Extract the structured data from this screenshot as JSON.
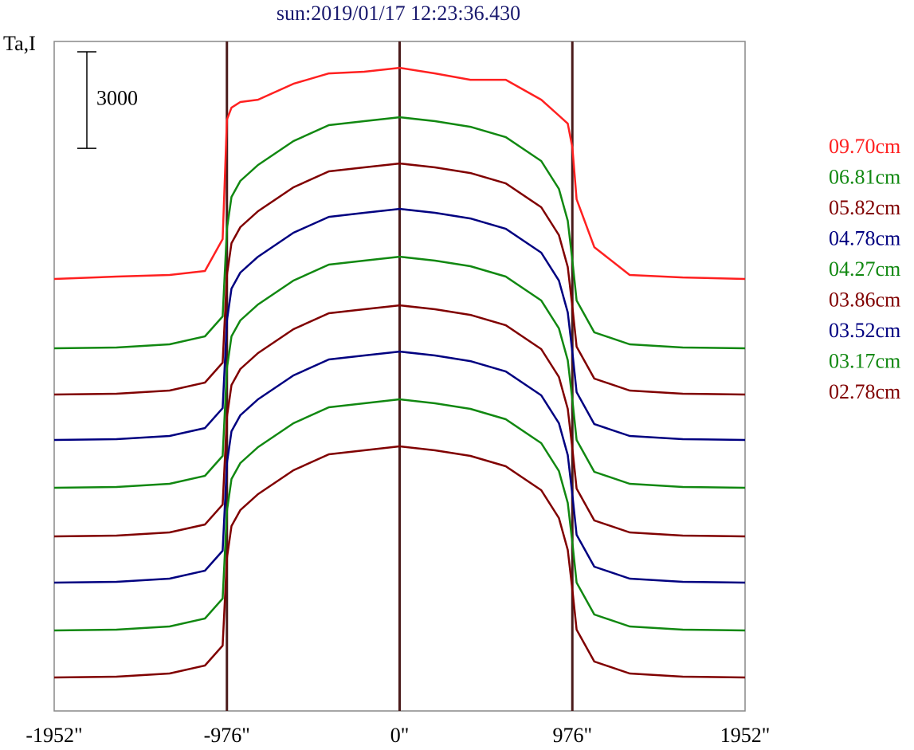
{
  "chart_data": {
    "type": "line",
    "title": "sun:2019/01/17 12:23:36.430",
    "ylabel": "Ta,I",
    "scale_bar": 3000,
    "x": [
      -1952,
      -1600,
      -1300,
      -1100,
      -1000,
      -976,
      -950,
      -900,
      -800,
      -600,
      -400,
      -200,
      0,
      200,
      400,
      600,
      800,
      900,
      950,
      976,
      1000,
      1100,
      1300,
      1600,
      1952
    ],
    "xlim": [
      -1952,
      1952
    ],
    "xticks": [
      {
        "value": -1952,
        "label": "-1952\""
      },
      {
        "value": -976,
        "label": "-976\""
      },
      {
        "value": 0,
        "label": "0\""
      },
      {
        "value": 976,
        "label": "976\""
      },
      {
        "value": 1952,
        "label": "1952\""
      }
    ],
    "ylim": [
      0,
      20800
    ],
    "grid_color": "#4a1a1a",
    "series": [
      {
        "name": "09.70cm",
        "color": "#ff2020",
        "values": [
          13420,
          13494,
          13544,
          13668,
          14658,
          18372,
          18743,
          18917,
          18991,
          19486,
          19808,
          19858,
          19981,
          19808,
          19610,
          19610,
          18991,
          18496,
          18248,
          17505,
          15896,
          14410,
          13544,
          13469,
          13420
        ]
      },
      {
        "name": "06.81cm",
        "color": "#118811",
        "values": [
          11266,
          11291,
          11390,
          11637,
          12256,
          14980,
          15970,
          16466,
          16961,
          17704,
          18199,
          18323,
          18446,
          18323,
          18149,
          17827,
          17085,
          16218,
          15228,
          13990,
          12752,
          11761,
          11390,
          11291,
          11266
        ]
      },
      {
        "name": "05.82cm",
        "color": "#800000",
        "values": [
          9830,
          9855,
          9954,
          10201,
          10820,
          13544,
          14534,
          15030,
          15525,
          16268,
          16763,
          16887,
          17010,
          16887,
          16713,
          16391,
          15649,
          14782,
          13792,
          12554,
          11316,
          10325,
          9954,
          9855,
          9830
        ]
      },
      {
        "name": "04.78cm",
        "color": "#000080",
        "values": [
          8418,
          8443,
          8542,
          8789,
          9408,
          12132,
          13122,
          13618,
          14113,
          14856,
          15351,
          15475,
          15598,
          15475,
          15301,
          14979,
          14237,
          13370,
          12380,
          11142,
          9904,
          8913,
          8542,
          8443,
          8418
        ]
      },
      {
        "name": "04.27cm",
        "color": "#118811",
        "values": [
          6933,
          6958,
          7057,
          7304,
          7923,
          10647,
          11637,
          12133,
          12628,
          13371,
          13866,
          13990,
          14113,
          13990,
          13816,
          13494,
          12752,
          11885,
          10895,
          9657,
          8419,
          7428,
          7057,
          6958,
          6933
        ]
      },
      {
        "name": "03.86cm",
        "color": "#800000",
        "values": [
          5422,
          5447,
          5546,
          5793,
          6412,
          9136,
          10126,
          10622,
          11117,
          11860,
          12355,
          12479,
          12602,
          12479,
          12305,
          11983,
          11241,
          10374,
          9384,
          8146,
          6908,
          5917,
          5546,
          5447,
          5422
        ]
      },
      {
        "name": "03.52cm",
        "color": "#000080",
        "values": [
          3986,
          4011,
          4110,
          4357,
          4976,
          7700,
          8690,
          9186,
          9681,
          10424,
          10919,
          11043,
          11166,
          11043,
          10869,
          10547,
          9805,
          8938,
          7948,
          6710,
          5472,
          4481,
          4110,
          4011,
          3986
        ]
      },
      {
        "name": "03.17cm",
        "color": "#118811",
        "values": [
          2501,
          2526,
          2625,
          2872,
          3491,
          6215,
          7205,
          7701,
          8196,
          8939,
          9434,
          9558,
          9681,
          9558,
          9384,
          9062,
          8320,
          7453,
          6463,
          5225,
          3987,
          2996,
          2625,
          2526,
          2501
        ]
      },
      {
        "name": "02.78cm",
        "color": "#800000",
        "values": [
          1040,
          1065,
          1164,
          1411,
          2030,
          4754,
          5744,
          6240,
          6735,
          7478,
          7973,
          8097,
          8220,
          8097,
          7923,
          7601,
          6859,
          5992,
          5002,
          3764,
          2526,
          1535,
          1164,
          1065,
          1040
        ]
      }
    ]
  }
}
